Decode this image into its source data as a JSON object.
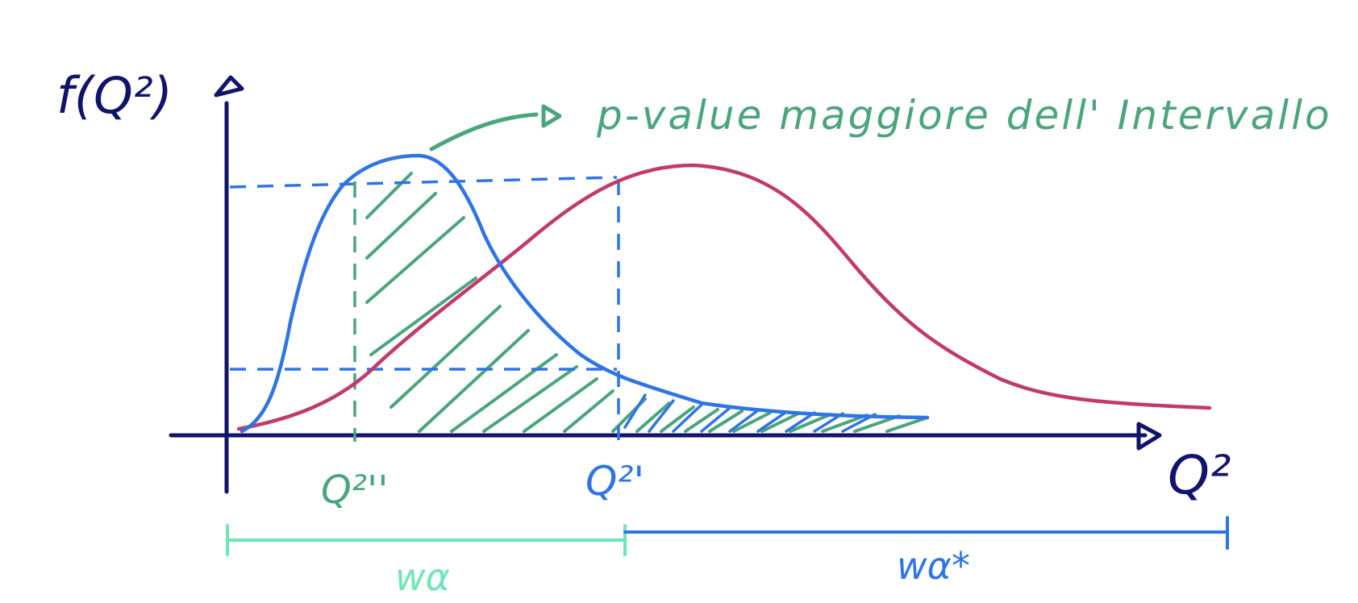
{
  "colors": {
    "axis": "#12136b",
    "null_curve": "#2f74e6",
    "alt_curve": "#c23a6a",
    "hatch": "#4aa57c",
    "interval_accept": "#6fe6b8",
    "interval_reject": "#2f74e6"
  },
  "labels": {
    "y_axis": "f(Q²)",
    "x_axis": "Q²",
    "q2_second": "Q²''",
    "q2_prime": "Q²'",
    "annotation": "p-value maggiore dell' Intervallo",
    "acceptance_region": "wα",
    "rejection_region": "wα*"
  },
  "icons": {
    "y_arrow": "arrow-up-icon",
    "x_arrow": "arrow-right-icon",
    "annotation_arrow": "arrow-right-icon"
  }
}
